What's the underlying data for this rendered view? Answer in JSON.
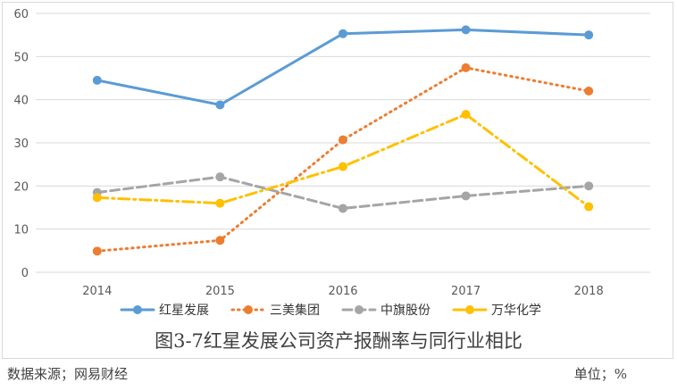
{
  "chart_data": {
    "type": "line",
    "categories": [
      "2014",
      "2015",
      "2016",
      "2017",
      "2018"
    ],
    "ylim": [
      0,
      60
    ],
    "yticks": [
      0,
      10,
      20,
      30,
      40,
      50,
      60
    ],
    "grid": true,
    "legend": "bottom",
    "series": [
      {
        "name": "红星发展",
        "values": [
          44.5,
          38.8,
          55.3,
          56.2,
          55.0
        ],
        "color": "#5b9bd5",
        "style": "solid"
      },
      {
        "name": "三美集团",
        "values": [
          4.9,
          7.4,
          30.7,
          47.4,
          42.0
        ],
        "color": "#ed7d31",
        "style": "dotted"
      },
      {
        "name": "中旗股份",
        "values": [
          18.5,
          22.1,
          14.8,
          17.7,
          20.0
        ],
        "color": "#a5a5a5",
        "style": "dashed"
      },
      {
        "name": "万华化学",
        "values": [
          17.3,
          16.0,
          24.5,
          36.6,
          15.2
        ],
        "color": "#ffc000",
        "style": "dashdot"
      }
    ]
  },
  "caption": "图3-7红星发展公司资产报酬率与同行业相比",
  "source_note": "数据来源；网易财经",
  "unit_note": "单位；%"
}
